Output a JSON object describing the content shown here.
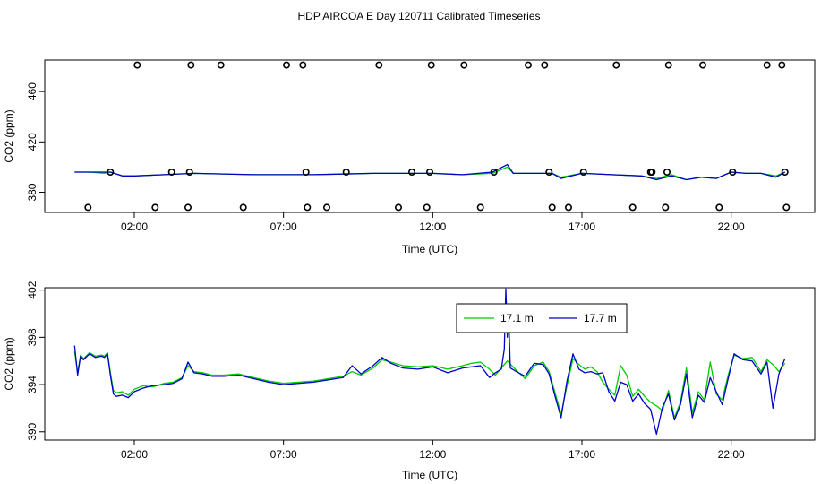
{
  "title": "HDP AIRCOA E  Day 120711  Calibrated Timeseries",
  "colors": {
    "green": "#00cc00",
    "blue": "#0000cc",
    "axis": "#000000"
  },
  "chart_data": [
    {
      "type": "scatter+line",
      "xlabel": "Time (UTC)",
      "ylabel": "CO2 (ppm)",
      "xlim": [
        -1.0,
        24.8
      ],
      "ylim": [
        364.0,
        485.0
      ],
      "xticks": [
        2,
        7,
        12,
        17,
        22
      ],
      "xtick_labels": [
        "02:00",
        "07:00",
        "12:00",
        "17:00",
        "22:00"
      ],
      "yticks": [
        380,
        420,
        460
      ],
      "ytick_labels": [
        "380",
        "420",
        "460"
      ],
      "calibration_points": {
        "x": [
          0.45,
          1.2,
          2.1,
          2.7,
          3.25,
          3.8,
          3.85,
          3.9,
          4.9,
          5.65,
          7.1,
          7.65,
          7.75,
          7.8,
          8.45,
          9.1,
          10.2,
          10.85,
          11.3,
          11.8,
          11.9,
          11.95,
          13.05,
          13.6,
          14.05,
          15.2,
          15.75,
          15.9,
          16.0,
          16.55,
          17.05,
          18.15,
          18.7,
          19.3,
          19.35,
          19.8,
          19.85,
          19.9,
          21.05,
          21.6,
          22.05,
          23.2,
          23.7,
          23.8,
          23.85
        ],
        "y": [
          368,
          396,
          481,
          368,
          396,
          368,
          396,
          481,
          481,
          368,
          481,
          481,
          396,
          368,
          368,
          396,
          481,
          368,
          396,
          368,
          396,
          481,
          481,
          368,
          396,
          481,
          481,
          396,
          368,
          368,
          396,
          481,
          368,
          396,
          396,
          368,
          396,
          481,
          481,
          368,
          396,
          481,
          481,
          396,
          368
        ]
      },
      "series": [
        {
          "name": "17.1 m",
          "color": "#00cc00",
          "x": [
            0,
            0.5,
            1.0,
            1.2,
            1.6,
            2.0,
            3.0,
            4.0,
            6.0,
            8.0,
            10.0,
            12.0,
            13.0,
            14.0,
            14.5,
            14.7,
            15.0,
            16.0,
            16.3,
            17.0,
            18.0,
            19.0,
            19.5,
            20.0,
            20.5,
            21.0,
            21.5,
            22.0,
            22.5,
            23.0,
            23.5,
            23.8
          ],
          "y": [
            396,
            396,
            395,
            396,
            393,
            393,
            394,
            395,
            394,
            394,
            395,
            395,
            394,
            395,
            400,
            395,
            395,
            395,
            392,
            395,
            394,
            393,
            391,
            394,
            390,
            392,
            391,
            396,
            395,
            395,
            393,
            396
          ]
        },
        {
          "name": "17.7 m",
          "color": "#0000cc",
          "x": [
            0,
            0.5,
            1.0,
            1.2,
            1.6,
            2.0,
            3.0,
            4.0,
            6.0,
            8.0,
            10.0,
            12.0,
            13.0,
            14.0,
            14.5,
            14.7,
            15.0,
            16.0,
            16.3,
            17.0,
            18.0,
            19.0,
            19.5,
            20.0,
            20.5,
            21.0,
            21.5,
            22.0,
            22.5,
            23.0,
            23.5,
            23.8
          ],
          "y": [
            396,
            396,
            396,
            396,
            393,
            393,
            394,
            395,
            394,
            394,
            395,
            395,
            394,
            396,
            402,
            395,
            395,
            395,
            391,
            395,
            394,
            393,
            390,
            393,
            390,
            392,
            391,
            396,
            395,
            395,
            392,
            396
          ]
        }
      ]
    },
    {
      "type": "line",
      "xlabel": "Time (UTC)",
      "ylabel": "CO2 (ppm)",
      "xlim": [
        -1.0,
        24.8
      ],
      "ylim": [
        389.3,
        402.2
      ],
      "xticks": [
        2,
        7,
        12,
        17,
        22
      ],
      "xtick_labels": [
        "02:00",
        "07:00",
        "12:00",
        "17:00",
        "22:00"
      ],
      "yticks": [
        390,
        394,
        398,
        402
      ],
      "ytick_labels": [
        "390",
        "394",
        "398",
        "402"
      ],
      "legend": {
        "placement": "top-center",
        "entries": [
          "17.1 m",
          "17.7 m"
        ]
      },
      "series": [
        {
          "name": "17.1 m",
          "color": "#00cc00",
          "x": [
            0.0,
            0.1,
            0.2,
            0.3,
            0.5,
            0.7,
            0.9,
            1.0,
            1.1,
            1.2,
            1.3,
            1.4,
            1.6,
            1.8,
            2.0,
            2.3,
            2.6,
            3.0,
            3.3,
            3.6,
            3.8,
            4.0,
            4.3,
            4.6,
            5.0,
            5.5,
            6.0,
            6.5,
            7.0,
            7.5,
            8.0,
            8.5,
            9.0,
            9.3,
            9.6,
            10.0,
            10.3,
            10.6,
            11.0,
            11.5,
            12.0,
            12.5,
            13.0,
            13.3,
            13.6,
            13.9,
            14.1,
            14.3,
            14.5,
            14.8,
            15.1,
            15.4,
            15.7,
            15.9,
            16.1,
            16.3,
            16.5,
            16.7,
            16.9,
            17.1,
            17.3,
            17.5,
            17.7,
            17.9,
            18.1,
            18.3,
            18.5,
            18.7,
            18.9,
            19.1,
            19.3,
            19.5,
            19.7,
            19.9,
            20.1,
            20.3,
            20.5,
            20.7,
            20.9,
            21.1,
            21.3,
            21.5,
            21.7,
            21.9,
            22.1,
            22.4,
            22.7,
            23.0,
            23.2,
            23.4,
            23.6,
            23.8
          ],
          "y": [
            396.8,
            395.0,
            396.5,
            396.2,
            396.7,
            396.4,
            396.5,
            396.4,
            396.7,
            395.0,
            393.5,
            393.3,
            393.4,
            393.1,
            393.6,
            393.9,
            393.8,
            394.1,
            394.2,
            394.6,
            395.6,
            395.1,
            395.0,
            394.8,
            394.8,
            394.9,
            394.6,
            394.3,
            394.1,
            394.2,
            394.3,
            394.5,
            394.7,
            395.1,
            394.8,
            395.4,
            396.1,
            395.9,
            395.6,
            395.5,
            395.6,
            395.3,
            395.6,
            395.8,
            395.9,
            395.3,
            394.8,
            395.4,
            396.0,
            395.2,
            394.5,
            395.6,
            395.9,
            395.1,
            393.3,
            391.5,
            393.9,
            396.2,
            395.7,
            395.3,
            395.5,
            395.1,
            394.2,
            393.6,
            393.1,
            395.6,
            394.8,
            393.0,
            393.6,
            393.0,
            392.5,
            392.2,
            391.8,
            393.5,
            391.2,
            392.5,
            395.4,
            391.6,
            393.4,
            392.7,
            395.9,
            393.2,
            392.7,
            394.8,
            396.5,
            396.2,
            396.3,
            395.1,
            396.1,
            395.7,
            395.1,
            395.8
          ]
        },
        {
          "name": "17.7 m",
          "color": "#0000cc",
          "x": [
            0.0,
            0.1,
            0.2,
            0.3,
            0.5,
            0.7,
            0.9,
            1.0,
            1.1,
            1.2,
            1.3,
            1.4,
            1.6,
            1.8,
            2.0,
            2.3,
            2.6,
            3.0,
            3.3,
            3.6,
            3.8,
            4.0,
            4.3,
            4.6,
            5.0,
            5.5,
            6.0,
            6.5,
            7.0,
            7.5,
            8.0,
            8.5,
            9.0,
            9.3,
            9.6,
            10.0,
            10.3,
            10.6,
            11.0,
            11.5,
            12.0,
            12.5,
            13.0,
            13.3,
            13.6,
            13.9,
            14.1,
            14.3,
            14.4,
            14.45,
            14.5,
            14.55,
            14.6,
            14.8,
            15.1,
            15.4,
            15.7,
            15.9,
            16.1,
            16.3,
            16.5,
            16.7,
            16.9,
            17.1,
            17.3,
            17.5,
            17.7,
            17.9,
            18.1,
            18.3,
            18.5,
            18.7,
            18.9,
            19.1,
            19.3,
            19.5,
            19.7,
            19.9,
            20.1,
            20.3,
            20.5,
            20.7,
            20.9,
            21.1,
            21.3,
            21.5,
            21.7,
            21.9,
            22.1,
            22.4,
            22.7,
            23.0,
            23.2,
            23.4,
            23.6,
            23.8
          ],
          "y": [
            397.3,
            394.8,
            396.4,
            396.1,
            396.6,
            396.3,
            396.4,
            396.3,
            396.6,
            394.8,
            393.2,
            393.0,
            393.1,
            392.9,
            393.4,
            393.7,
            393.9,
            394.0,
            394.1,
            394.5,
            395.9,
            395.0,
            394.9,
            394.7,
            394.7,
            394.8,
            394.5,
            394.2,
            394.0,
            394.1,
            394.2,
            394.4,
            394.6,
            395.6,
            394.9,
            395.6,
            396.3,
            395.8,
            395.4,
            395.3,
            395.5,
            395.0,
            395.4,
            395.5,
            395.6,
            394.6,
            395.0,
            395.3,
            397.0,
            402.1,
            398.0,
            399.5,
            395.4,
            395.1,
            394.7,
            395.8,
            395.7,
            394.9,
            393.0,
            391.2,
            394.3,
            396.6,
            395.3,
            395.0,
            395.1,
            394.9,
            395.0,
            393.4,
            392.6,
            394.2,
            394.0,
            392.6,
            393.2,
            392.4,
            391.9,
            389.8,
            392.1,
            393.2,
            391.0,
            392.3,
            394.9,
            391.2,
            393.1,
            392.5,
            394.6,
            393.4,
            392.3,
            394.5,
            396.6,
            396.1,
            396.0,
            394.9,
            395.9,
            392.0,
            394.9,
            396.2
          ]
        }
      ]
    }
  ]
}
